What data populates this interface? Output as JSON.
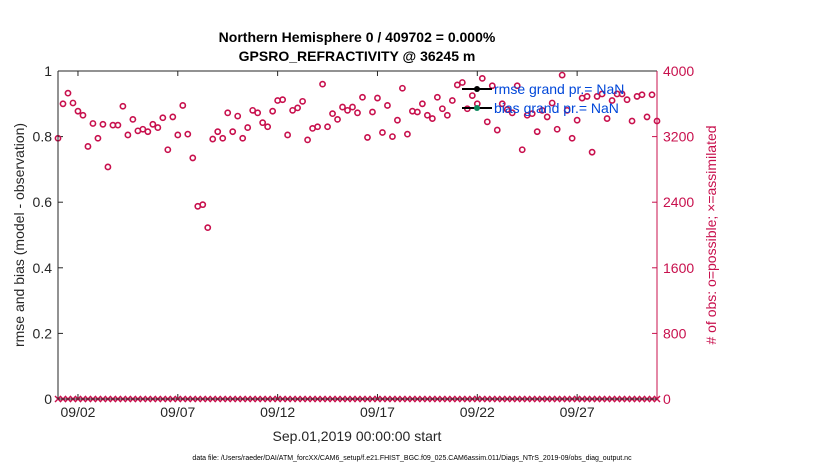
{
  "chart_data": {
    "type": "scatter",
    "title": "Northern Hemisphere 0 / 409702 = 0.000%",
    "subtitle": "GPSRO_REFRACTIVITY @ 36245 m",
    "xlabel": "Sep.01,2019 00:00:00 start",
    "ylabel_left": "rmse and bias (model - observation)",
    "ylabel_right": "# of obs: o=possible; ×=assimilated",
    "xlim": [
      0,
      30
    ],
    "ylim_left": [
      0,
      1
    ],
    "ylim_right": [
      0,
      4000
    ],
    "x_ticks": [
      {
        "label": "09/02",
        "value": 1
      },
      {
        "label": "09/07",
        "value": 6
      },
      {
        "label": "09/12",
        "value": 11
      },
      {
        "label": "09/17",
        "value": 16
      },
      {
        "label": "09/22",
        "value": 21
      },
      {
        "label": "09/27",
        "value": 26
      }
    ],
    "left_ticks": [
      "0",
      "0.2",
      "0.4",
      "0.6",
      "0.8",
      "1"
    ],
    "left_tick_values": [
      0,
      0.2,
      0.4,
      0.6,
      0.8,
      1
    ],
    "right_ticks": [
      "0",
      "800",
      "1600",
      "2400",
      "3200",
      "4000"
    ],
    "right_tick_values": [
      0,
      800,
      1600,
      2400,
      3200,
      4000
    ],
    "legend": {
      "position": "top-right",
      "entries": [
        {
          "label": "rmse grand pr.= NaN",
          "marker": "dot",
          "color": "#000000"
        },
        {
          "label": "bias grand pr.= NaN",
          "marker": "dot",
          "color": "#0f8a5f"
        }
      ]
    },
    "series": [
      {
        "name": "possible",
        "marker": "circle",
        "color": "#c8104d",
        "x": [
          0.0,
          0.25,
          0.5,
          0.75,
          1.0,
          1.25,
          1.5,
          1.75,
          2.0,
          2.25,
          2.5,
          2.75,
          3.0,
          3.25,
          3.5,
          3.75,
          4.0,
          4.25,
          4.5,
          4.75,
          5.0,
          5.25,
          5.5,
          5.75,
          6.0,
          6.25,
          6.5,
          6.75,
          7.0,
          7.25,
          7.5,
          7.75,
          8.0,
          8.25,
          8.5,
          8.75,
          9.0,
          9.25,
          9.5,
          9.75,
          10.0,
          10.25,
          10.5,
          10.75,
          11.0,
          11.25,
          11.5,
          11.75,
          12.0,
          12.25,
          12.5,
          12.75,
          13.0,
          13.25,
          13.5,
          13.75,
          14.0,
          14.25,
          14.5,
          14.75,
          15.0,
          15.25,
          15.5,
          15.75,
          16.0,
          16.25,
          16.5,
          16.75,
          17.0,
          17.25,
          17.5,
          17.75,
          18.0,
          18.25,
          18.5,
          18.75,
          19.0,
          19.25,
          19.5,
          19.75,
          20.0,
          20.25,
          20.5,
          20.75,
          21.0,
          21.25,
          21.5,
          21.75,
          22.0,
          22.25,
          22.5,
          22.75,
          23.0,
          23.25,
          23.5,
          23.75,
          24.0,
          24.25,
          24.5,
          24.75,
          25.0,
          25.25,
          25.5,
          25.75,
          26.0,
          26.25,
          26.5,
          26.75,
          27.0,
          27.25,
          27.5,
          27.75,
          28.0,
          28.25,
          28.5,
          28.75,
          29.0,
          29.25,
          29.5,
          29.75,
          30.0
        ],
        "y": [
          3180,
          3600,
          3730,
          3610,
          3510,
          3460,
          3080,
          3360,
          3180,
          3350,
          2830,
          3340,
          3340,
          3570,
          3220,
          3410,
          3270,
          3290,
          3260,
          3350,
          3310,
          3430,
          3040,
          3440,
          3220,
          3580,
          3230,
          2940,
          2350,
          2370,
          2090,
          3170,
          3260,
          3180,
          3490,
          3260,
          3450,
          3180,
          3310,
          3520,
          3490,
          3370,
          3320,
          3510,
          3640,
          3650,
          3220,
          3520,
          3550,
          3630,
          3160,
          3300,
          3320,
          3840,
          3320,
          3480,
          3410,
          3560,
          3520,
          3560,
          3490,
          3680,
          3190,
          3500,
          3670,
          3250,
          3580,
          3200,
          3400,
          3790,
          3230,
          3510,
          3500,
          3600,
          3460,
          3420,
          3680,
          3540,
          3460,
          3640,
          3830,
          3860,
          3540,
          3700,
          3600,
          3910,
          3380,
          3820,
          3280,
          3600,
          3530,
          3490,
          3820,
          3040,
          3460,
          3480,
          3260,
          3520,
          3440,
          3610,
          3290,
          3950,
          3520,
          3180,
          3400,
          3670,
          3690,
          3010,
          3690,
          3720,
          3420,
          3640,
          3720,
          3720,
          3650,
          3390,
          3690,
          3710,
          3440,
          3710,
          3390
        ]
      },
      {
        "name": "assimilated",
        "marker": "x",
        "color": "#c8104d",
        "constant_value": 0,
        "count": 121
      }
    ]
  },
  "footer": {
    "data_file": "data file: /Users/raeder/DAI/ATM_forcXX/CAM6_setup/f.e21.FHIST_BGC.f09_025.CAM6assim.011/Diags_NTrS_2019-09/obs_diag_output.nc"
  },
  "colors": {
    "possible": "#c8104d",
    "rmse": "#000000",
    "bias": "#0f8a5f",
    "legend_text": "#0047d9"
  }
}
